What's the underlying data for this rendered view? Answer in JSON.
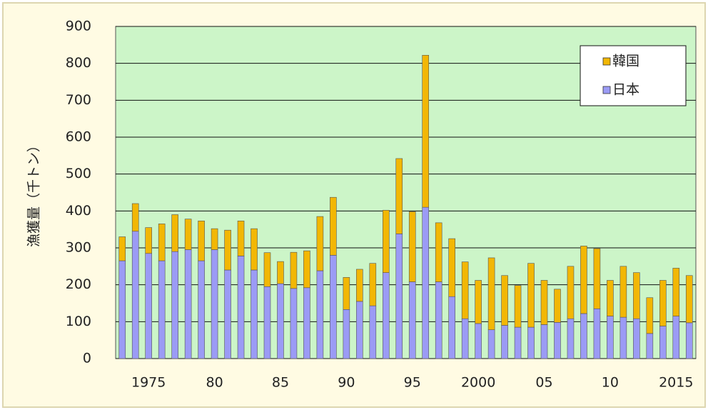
{
  "chart_data": {
    "type": "stacked-bar",
    "y_label": "漁獲量（千トン）",
    "categories": [
      null,
      null,
      "1975",
      null,
      null,
      null,
      null,
      "80",
      null,
      null,
      null,
      null,
      "85",
      null,
      null,
      null,
      null,
      "90",
      null,
      null,
      null,
      null,
      "95",
      null,
      null,
      null,
      null,
      "2000",
      null,
      null,
      null,
      null,
      "05",
      null,
      null,
      null,
      null,
      "10",
      null,
      null,
      null,
      null,
      "2015",
      null
    ],
    "series": [
      {
        "name": "日本",
        "color": "#9b9bf5",
        "values": [
          265,
          345,
          285,
          265,
          290,
          295,
          265,
          295,
          240,
          278,
          240,
          195,
          203,
          190,
          192,
          238,
          280,
          133,
          155,
          143,
          233,
          338,
          208,
          410,
          208,
          168,
          108,
          95,
          78,
          90,
          85,
          85,
          92,
          98,
          108,
          122,
          135,
          115,
          112,
          108,
          68,
          88,
          115,
          97
        ]
      },
      {
        "name": "韓国",
        "color": "#f2b705",
        "values": [
          65,
          75,
          70,
          100,
          100,
          83,
          108,
          57,
          108,
          95,
          112,
          92,
          60,
          98,
          100,
          147,
          157,
          87,
          87,
          115,
          169,
          204,
          190,
          412,
          160,
          157,
          154,
          117,
          195,
          135,
          113,
          173,
          120,
          90,
          142,
          183,
          163,
          97,
          138,
          125,
          97,
          124,
          130,
          128
        ]
      }
    ],
    "ylim": [
      0,
      900
    ],
    "yticks": [
      0,
      100,
      200,
      300,
      400,
      500,
      600,
      700,
      800,
      900
    ],
    "grid": true,
    "legend": "top-right"
  }
}
